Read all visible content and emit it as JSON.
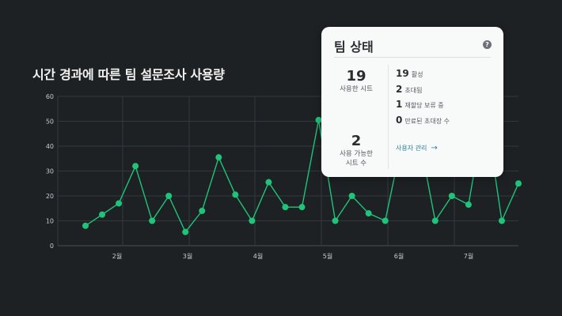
{
  "page": {
    "title": "시간 경과에 따른 팀 설문조사 사용량"
  },
  "card": {
    "title": "팀 상태",
    "help_icon": "?",
    "used_seats": {
      "value": "19",
      "label": "사용한 시트"
    },
    "available_seats": {
      "value": "2",
      "label_line1": "사용 가능한",
      "label_line2": "시트 수"
    },
    "stats": [
      {
        "value": "19",
        "label": "활성"
      },
      {
        "value": "2",
        "label": "초대됨"
      },
      {
        "value": "1",
        "label": "재할당 보류 중"
      },
      {
        "value": "0",
        "label": "만료된 초대장 수"
      }
    ],
    "manage_link": "사용자 관리",
    "manage_arrow": "→"
  },
  "chart_data": {
    "type": "line",
    "title": "시간 경과에 따른 팀 설문조사 사용량",
    "xlabel": "",
    "ylabel": "",
    "ylim": [
      0,
      60
    ],
    "yticks": [
      0,
      10,
      20,
      30,
      40,
      50,
      60
    ],
    "xtick_labels": [
      "2월",
      "3월",
      "4월",
      "5월",
      "6월",
      "7월"
    ],
    "grid": true,
    "color": "#1fc47a",
    "values": [
      8,
      12.5,
      17,
      32,
      10,
      20,
      5.5,
      14,
      35.5,
      20.5,
      10,
      25.5,
      15.5,
      15.5,
      50.5,
      10,
      20,
      13,
      10,
      42,
      45,
      10,
      20,
      16.5,
      55,
      10,
      25
    ]
  }
}
